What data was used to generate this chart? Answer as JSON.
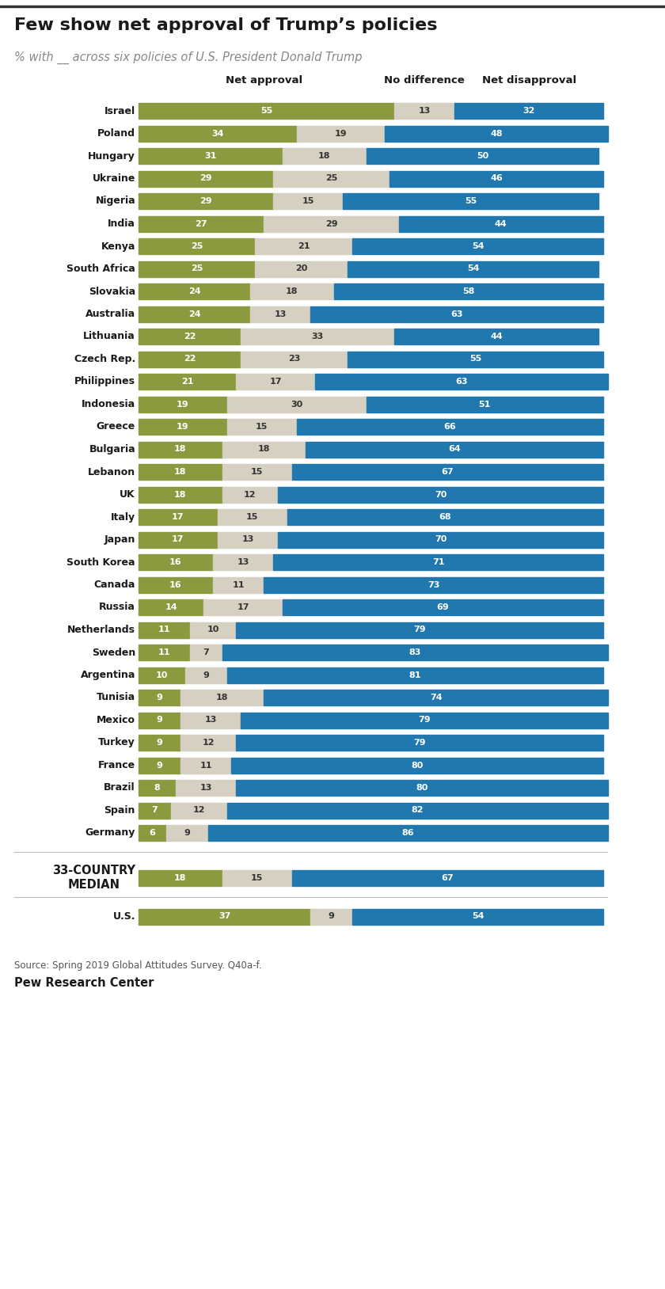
{
  "title": "Few show net approval of Trump’s policies",
  "subtitle": "% with __ across six policies of U.S. President Donald Trump",
  "col_header_approval": "Net approval",
  "col_header_nodiff": "No difference",
  "col_header_disapproval": "Net disapproval",
  "countries": [
    "Israel",
    "Poland",
    "Hungary",
    "Ukraine",
    "Nigeria",
    "India",
    "Kenya",
    "South Africa",
    "Slovakia",
    "Australia",
    "Lithuania",
    "Czech Rep.",
    "Philippines",
    "Indonesia",
    "Greece",
    "Bulgaria",
    "Lebanon",
    "UK",
    "Italy",
    "Japan",
    "South Korea",
    "Canada",
    "Russia",
    "Netherlands",
    "Sweden",
    "Argentina",
    "Tunisia",
    "Mexico",
    "Turkey",
    "France",
    "Brazil",
    "Spain",
    "Germany"
  ],
  "net_approval": [
    55,
    34,
    31,
    29,
    29,
    27,
    25,
    25,
    24,
    24,
    22,
    22,
    21,
    19,
    19,
    18,
    18,
    18,
    17,
    17,
    16,
    16,
    14,
    11,
    11,
    10,
    9,
    9,
    9,
    9,
    8,
    7,
    6
  ],
  "no_difference": [
    13,
    19,
    18,
    25,
    15,
    29,
    21,
    20,
    18,
    13,
    33,
    23,
    17,
    30,
    15,
    18,
    15,
    12,
    15,
    13,
    13,
    11,
    17,
    10,
    7,
    9,
    18,
    13,
    12,
    11,
    13,
    12,
    9
  ],
  "net_disapproval": [
    32,
    48,
    50,
    46,
    55,
    44,
    54,
    54,
    58,
    63,
    44,
    55,
    63,
    51,
    66,
    64,
    67,
    70,
    68,
    70,
    71,
    73,
    69,
    79,
    83,
    81,
    74,
    79,
    79,
    80,
    80,
    82,
    86
  ],
  "median_label": "33-COUNTRY\nMEDIAN",
  "median_approval": 18,
  "median_no_diff": 15,
  "median_disapproval": 67,
  "us_label": "U.S.",
  "us_approval": 37,
  "us_no_diff": 9,
  "us_disapproval": 54,
  "color_approval": "#8b9a3e",
  "color_no_diff": "#d5d0c2",
  "color_disapproval": "#2078ae",
  "color_text_dark": "#1a1a1a",
  "source_text": "Source: Spring 2019 Global Attitudes Survey. Q40a-f.",
  "footer_text": "Pew Research Center",
  "bg_color": "#ffffff",
  "bar_text_color_light": "#ffffff",
  "bar_text_color_dark": "#333333"
}
